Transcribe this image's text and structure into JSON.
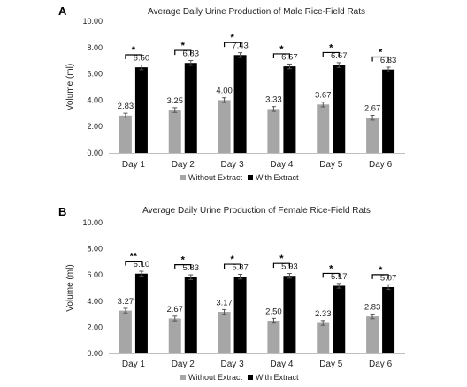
{
  "chart_data": [
    {
      "panel": "A",
      "type": "bar",
      "title": "Average Daily Urine Production of Male Rice-Field Rats",
      "ylabel": "Volume (ml)",
      "xlabel": "",
      "ylim": [
        0,
        10
      ],
      "yticks": [
        "0.00",
        "2.00",
        "4.00",
        "6.00",
        "8.00",
        "10.00"
      ],
      "categories": [
        "Day 1",
        "Day 2",
        "Day 3",
        "Day 4",
        "Day 5",
        "Day 6"
      ],
      "series": [
        {
          "name": "Without Extract",
          "color": "#a6a6a6",
          "values": [
            2.83,
            3.25,
            4.0,
            3.33,
            3.67,
            2.67
          ],
          "labels": [
            "2.83",
            "3.25",
            "4.00",
            "3.33",
            "3.67",
            "2.67"
          ]
        },
        {
          "name": "With Extract",
          "color": "#000000",
          "values": [
            6.5,
            6.83,
            7.43,
            6.57,
            6.67,
            6.33
          ],
          "labels": [
            "6.50",
            "6.83",
            "7.43",
            "6.57",
            "6.67",
            "6.33"
          ]
        }
      ],
      "significance": [
        "*",
        "*",
        "*",
        "*",
        "*",
        "*"
      ],
      "legend": "bottom",
      "grid": false
    },
    {
      "panel": "B",
      "type": "bar",
      "title": "Average Daily Urine Production of Female Rice-Field Rats",
      "ylabel": "Volume (ml)",
      "xlabel": "",
      "ylim": [
        0,
        10
      ],
      "yticks": [
        "0.00",
        "2.00",
        "4.00",
        "6.00",
        "8.00",
        "10.00"
      ],
      "categories": [
        "Day 1",
        "Day 2",
        "Day 3",
        "Day 4",
        "Day 5",
        "Day 6"
      ],
      "series": [
        {
          "name": "Without Extract",
          "color": "#a6a6a6",
          "values": [
            3.27,
            2.67,
            3.17,
            2.5,
            2.33,
            2.83
          ],
          "labels": [
            "3.27",
            "2.67",
            "3.17",
            "2.50",
            "2.33",
            "2.83"
          ]
        },
        {
          "name": "With Extract",
          "color": "#000000",
          "values": [
            6.1,
            5.83,
            5.87,
            5.93,
            5.17,
            5.07
          ],
          "labels": [
            "6.10",
            "5.83",
            "5.87",
            "5.93",
            "5.17",
            "5.07"
          ]
        }
      ],
      "significance": [
        "**",
        "*",
        "*",
        "*",
        "*",
        "*"
      ],
      "legend": "bottom",
      "grid": false
    }
  ]
}
